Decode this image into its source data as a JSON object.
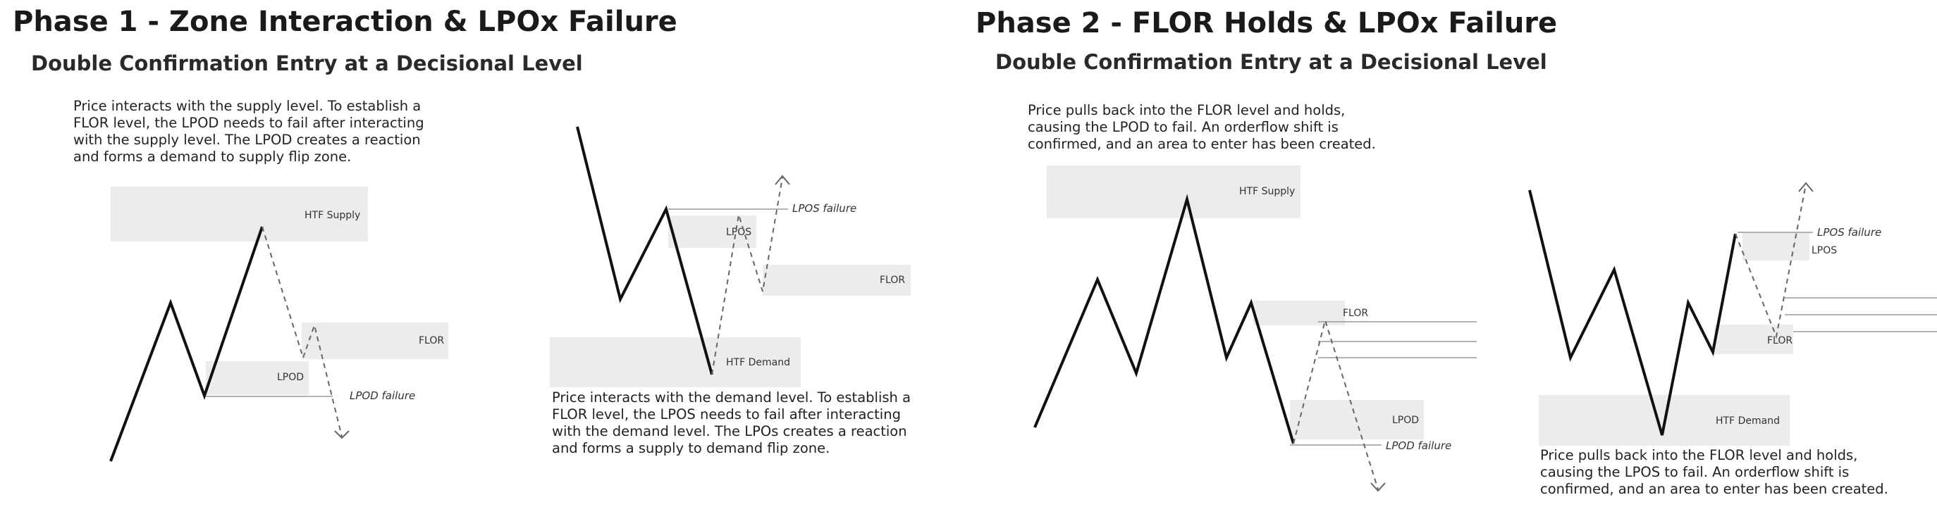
{
  "phase1": {
    "title": "Phase 1 - Zone Interaction & LPOx Failure",
    "subtitle": "Double Confirmation Entry at a Decisional Level",
    "diagram_a": {
      "description": [
        "Price interacts with the supply level. To establish a",
        "FLOR level, the LPOD needs to fail after interacting",
        "with the supply level. The LPOD creates a reaction",
        "and forms a demand to supply flip zone."
      ],
      "htf_label": "HTF Supply",
      "flor_label": "FLOR",
      "lpo_label": "LPOD",
      "failure_label": "LPOD failure"
    },
    "diagram_b": {
      "description": [
        "Price interacts with the demand level. To establish a",
        "FLOR level, the LPOS needs to fail after interacting",
        "with the demand level. The LPOs creates a reaction",
        "and forms a supply to demand flip zone."
      ],
      "htf_label": "HTF Demand",
      "flor_label": "FLOR",
      "lpo_label": "LPOS",
      "failure_label": "LPOS failure"
    }
  },
  "phase2": {
    "title": "Phase 2 - FLOR Holds & LPOx Failure",
    "subtitle": "Double Confirmation Entry at a Decisional Level",
    "diagram_a": {
      "description": [
        "Price pulls back into the FLOR level and holds,",
        "causing the LPOD to fail. An orderflow shift is",
        "confirmed, and an area to enter has been created."
      ],
      "htf_label": "HTF Supply",
      "flor_label": "FLOR",
      "lpo_label": "LPOD",
      "failure_label": "LPOD failure"
    },
    "diagram_b": {
      "description": [
        "Price pulls back into the FLOR level and holds,",
        "causing the LPOS to fail. An orderflow shift is",
        "confirmed, and an area to enter has been created."
      ],
      "htf_label": "HTF Demand",
      "flor_label": "FLOR",
      "lpo_label": "LPOS",
      "failure_label": "LPOS failure"
    }
  },
  "colors": {
    "zone_fill": "#ececec",
    "price_line": "#111111",
    "projection_dash": "#666666"
  }
}
